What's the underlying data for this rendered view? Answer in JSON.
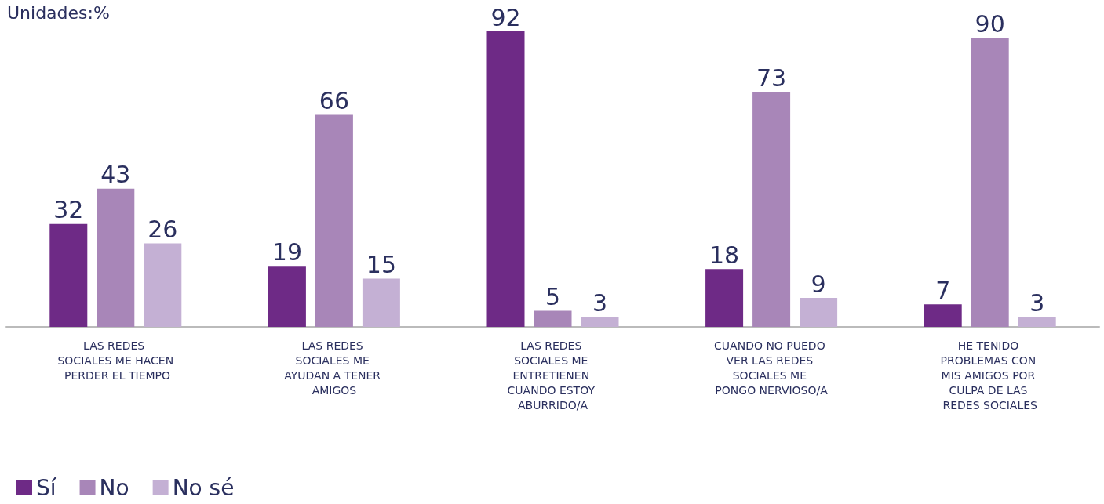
{
  "chart_data": {
    "type": "bar",
    "subtitle": "Unidades:%",
    "categories": [
      "LAS REDES SOCIALES ME HACEN PERDER EL TIEMPO",
      "LAS REDES SOCIALES ME AYUDAN A TENER AMIGOS",
      "LAS REDES SOCIALES ME ENTRETIENEN CUANDO ESTOY ABURRIDO/A",
      "CUANDO NO PUEDO VER LAS REDES SOCIALES ME PONGO NERVIOSO/A",
      "HE TENIDO PROBLEMAS CON MIS AMIGOS POR CULPA DE LAS REDES SOCIALES"
    ],
    "series": [
      {
        "name": "Sí",
        "color": "#6e2a86",
        "values": [
          32,
          19,
          92,
          18,
          7
        ]
      },
      {
        "name": "No",
        "color": "#a886b8",
        "values": [
          43,
          66,
          5,
          73,
          90
        ]
      },
      {
        "name": "No sé",
        "color": "#c4b0d4",
        "values": [
          26,
          15,
          3,
          9,
          3
        ]
      }
    ],
    "data_labels": true,
    "legend": "bottom left",
    "grid": false
  }
}
